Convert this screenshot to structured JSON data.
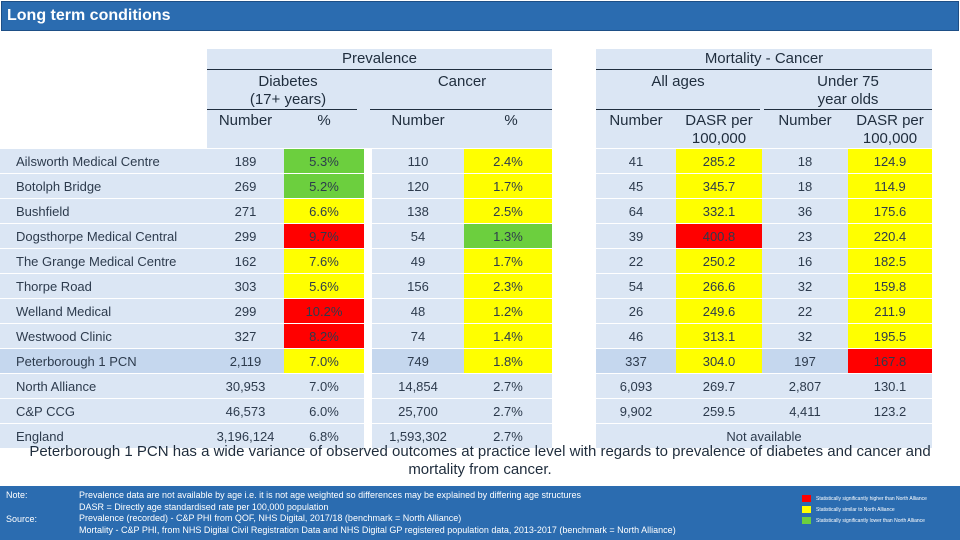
{
  "title": "Long term conditions",
  "headers": {
    "prevalence": "Prevalence",
    "diabetes": "Diabetes\n(17+ years)",
    "cancer": "Cancer",
    "prev_number": "Number",
    "prev_pct": "%",
    "cancer_number": "Number",
    "cancer_pct": "%",
    "mortality": "Mortality - Cancer",
    "all_ages": "All ages",
    "under75": "Under 75\nyear olds",
    "mort_number": "Number",
    "mort_dasr": "DASR per\n100,000",
    "u75_number": "Number",
    "u75_dasr": "DASR per\n100,000"
  },
  "rows": [
    {
      "name": "Ailsworth Medical Centre",
      "d_num": "189",
      "d_pct": "5.3%",
      "d_pct_c": "green",
      "c_num": "110",
      "c_pct": "2.4%",
      "c_pct_c": "yellow",
      "m_num": "41",
      "m_dasr": "285.2",
      "m_dasr_c": "yellow",
      "u_num": "18",
      "u_dasr": "124.9",
      "u_dasr_c": "yellow"
    },
    {
      "name": "Botolph Bridge",
      "d_num": "269",
      "d_pct": "5.2%",
      "d_pct_c": "green",
      "c_num": "120",
      "c_pct": "1.7%",
      "c_pct_c": "yellow",
      "m_num": "45",
      "m_dasr": "345.7",
      "m_dasr_c": "yellow",
      "u_num": "18",
      "u_dasr": "114.9",
      "u_dasr_c": "yellow"
    },
    {
      "name": "Bushfield",
      "d_num": "271",
      "d_pct": "6.6%",
      "d_pct_c": "yellow",
      "c_num": "138",
      "c_pct": "2.5%",
      "c_pct_c": "yellow",
      "m_num": "64",
      "m_dasr": "332.1",
      "m_dasr_c": "yellow",
      "u_num": "36",
      "u_dasr": "175.6",
      "u_dasr_c": "yellow"
    },
    {
      "name": "Dogsthorpe Medical Central",
      "d_num": "299",
      "d_pct": "9.7%",
      "d_pct_c": "red",
      "c_num": "54",
      "c_pct": "1.3%",
      "c_pct_c": "green",
      "m_num": "39",
      "m_dasr": "400.8",
      "m_dasr_c": "red",
      "u_num": "23",
      "u_dasr": "220.4",
      "u_dasr_c": "yellow"
    },
    {
      "name": "The Grange Medical Centre",
      "d_num": "162",
      "d_pct": "7.6%",
      "d_pct_c": "yellow",
      "c_num": "49",
      "c_pct": "1.7%",
      "c_pct_c": "yellow",
      "m_num": "22",
      "m_dasr": "250.2",
      "m_dasr_c": "yellow",
      "u_num": "16",
      "u_dasr": "182.5",
      "u_dasr_c": "yellow"
    },
    {
      "name": "Thorpe Road",
      "d_num": "303",
      "d_pct": "5.6%",
      "d_pct_c": "yellow",
      "c_num": "156",
      "c_pct": "2.3%",
      "c_pct_c": "yellow",
      "m_num": "54",
      "m_dasr": "266.6",
      "m_dasr_c": "yellow",
      "u_num": "32",
      "u_dasr": "159.8",
      "u_dasr_c": "yellow"
    },
    {
      "name": "Welland Medical",
      "d_num": "299",
      "d_pct": "10.2%",
      "d_pct_c": "red",
      "c_num": "48",
      "c_pct": "1.2%",
      "c_pct_c": "yellow",
      "m_num": "26",
      "m_dasr": "249.6",
      "m_dasr_c": "yellow",
      "u_num": "22",
      "u_dasr": "211.9",
      "u_dasr_c": "yellow"
    },
    {
      "name": "Westwood Clinic",
      "d_num": "327",
      "d_pct": "8.2%",
      "d_pct_c": "red",
      "c_num": "74",
      "c_pct": "1.4%",
      "c_pct_c": "yellow",
      "m_num": "46",
      "m_dasr": "313.1",
      "m_dasr_c": "yellow",
      "u_num": "32",
      "u_dasr": "195.5",
      "u_dasr_c": "yellow"
    },
    {
      "name": "Peterborough 1 PCN",
      "pcn": true,
      "d_num": "2,119",
      "d_pct": "7.0%",
      "d_pct_c": "yellow",
      "c_num": "749",
      "c_pct": "1.8%",
      "c_pct_c": "yellow",
      "m_num": "337",
      "m_dasr": "304.0",
      "m_dasr_c": "yellow",
      "u_num": "197",
      "u_dasr": "167.8",
      "u_dasr_c": "red"
    },
    {
      "name": "North Alliance",
      "d_num": "30,953",
      "d_pct": "7.0%",
      "c_num": "14,854",
      "c_pct": "2.7%",
      "m_num": "6,093",
      "m_dasr": "269.7",
      "u_num": "2,807",
      "u_dasr": "130.1"
    },
    {
      "name": "C&P CCG",
      "d_num": "46,573",
      "d_pct": "6.0%",
      "c_num": "25,700",
      "c_pct": "2.7%",
      "m_num": "9,902",
      "m_dasr": "259.5",
      "u_num": "4,411",
      "u_dasr": "123.2"
    },
    {
      "name": "England",
      "d_num": "3,196,124",
      "d_pct": "6.8%",
      "c_num": "1,593,302",
      "c_pct": "2.7%",
      "not_available": "Not available"
    }
  ],
  "summary": "Peterborough 1 PCN has a wide variance of observed outcomes at practice level with regards to prevalence of diabetes and cancer and mortality from cancer.",
  "notes": {
    "note_label": "Note:",
    "note_lines": [
      "Prevalence data are not available by age i.e. it is not age weighted so differences may be explained by differing age structures",
      "DASR = Directly age standardised rate per 100,000 population"
    ],
    "source_label": "Source:",
    "source_lines": [
      "Prevalence (recorded) - C&P PHI from QOF, NHS Digital, 2017/18 (benchmark = North Alliance)",
      "Mortality - C&P PHI, from NHS Digital Civil Registration Data and NHS Digital GP registered population data, 2013-2017 (benchmark = North Alliance)"
    ]
  },
  "legend": [
    {
      "label": "Statistically significantly higher than North Alliance",
      "color": "#ff0000"
    },
    {
      "label": "Statistically similar to North Alliance",
      "color": "#ffff00"
    },
    {
      "label": "Statistically significantly lower than North Alliance",
      "color": "#6ccf3e"
    }
  ]
}
